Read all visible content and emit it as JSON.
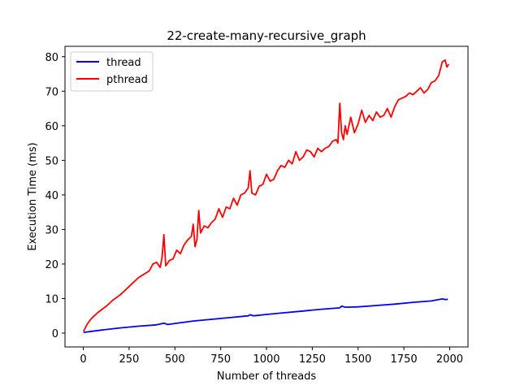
{
  "chart_data": {
    "type": "line",
    "title": "22-create-many-recursive_graph",
    "xlabel": "Number of threads",
    "ylabel": "Execution Time (ms)",
    "xlim": [
      -100,
      2100
    ],
    "ylim": [
      -4,
      83
    ],
    "xticks": [
      0,
      250,
      500,
      750,
      1000,
      1250,
      1500,
      1750,
      2000
    ],
    "yticks": [
      0,
      10,
      20,
      30,
      40,
      50,
      60,
      70,
      80
    ],
    "grid": false,
    "legend_position": "top-left",
    "series": [
      {
        "name": "thread",
        "color": "#0000ff",
        "x": [
          1,
          100,
          200,
          300,
          400,
          440,
          460,
          500,
          600,
          700,
          800,
          900,
          910,
          930,
          1000,
          1100,
          1200,
          1300,
          1400,
          1410,
          1430,
          1500,
          1600,
          1700,
          1800,
          1900,
          1960,
          1980,
          1990
        ],
        "y": [
          0.2,
          0.9,
          1.5,
          2.0,
          2.4,
          2.9,
          2.5,
          2.8,
          3.5,
          4.0,
          4.5,
          5.0,
          5.3,
          5.0,
          5.4,
          5.9,
          6.4,
          6.9,
          7.3,
          7.8,
          7.5,
          7.6,
          8.0,
          8.4,
          8.9,
          9.3,
          9.9,
          9.7,
          9.8
        ]
      },
      {
        "name": "pthread",
        "color": "#ff0000",
        "x": [
          1,
          20,
          40,
          60,
          80,
          100,
          130,
          160,
          200,
          240,
          270,
          300,
          330,
          360,
          380,
          400,
          420,
          430,
          440,
          450,
          470,
          490,
          510,
          530,
          550,
          570,
          590,
          600,
          610,
          620,
          630,
          640,
          660,
          680,
          700,
          720,
          740,
          760,
          780,
          800,
          820,
          840,
          860,
          880,
          900,
          910,
          920,
          940,
          960,
          980,
          1000,
          1020,
          1040,
          1060,
          1080,
          1100,
          1120,
          1140,
          1160,
          1180,
          1200,
          1220,
          1240,
          1260,
          1280,
          1300,
          1320,
          1340,
          1360,
          1380,
          1390,
          1400,
          1410,
          1420,
          1430,
          1440,
          1460,
          1480,
          1500,
          1520,
          1540,
          1560,
          1580,
          1600,
          1620,
          1640,
          1660,
          1680,
          1700,
          1720,
          1740,
          1760,
          1780,
          1800,
          1820,
          1840,
          1860,
          1880,
          1900,
          1920,
          1940,
          1960,
          1975,
          1985,
          1995
        ],
        "y": [
          0.5,
          2.5,
          4.0,
          5.0,
          6.0,
          6.8,
          8.0,
          9.5,
          11.0,
          13.0,
          14.5,
          16.0,
          17.0,
          18.0,
          20.0,
          20.5,
          19.0,
          22.0,
          28.5,
          19.5,
          21.0,
          21.5,
          24.0,
          23.0,
          25.5,
          27.0,
          28.0,
          31.5,
          25.0,
          27.0,
          35.5,
          29.0,
          31.0,
          30.5,
          32.0,
          33.0,
          36.0,
          33.5,
          36.5,
          36.0,
          39.0,
          37.0,
          40.0,
          40.5,
          42.0,
          47.0,
          40.5,
          40.0,
          42.5,
          43.0,
          46.0,
          44.0,
          44.5,
          47.0,
          48.5,
          48.0,
          50.0,
          49.0,
          52.5,
          50.0,
          51.0,
          53.0,
          52.5,
          51.0,
          53.5,
          52.5,
          53.5,
          54.0,
          55.5,
          56.0,
          55.0,
          66.5,
          58.0,
          56.0,
          60.0,
          57.5,
          62.5,
          58.0,
          60.5,
          64.5,
          61.0,
          63.0,
          61.5,
          64.0,
          62.5,
          63.0,
          65.0,
          62.5,
          65.5,
          67.5,
          68.0,
          68.5,
          69.5,
          69.0,
          70.0,
          71.0,
          69.5,
          70.5,
          72.5,
          73.0,
          74.5,
          78.5,
          79.0,
          77.0,
          77.8
        ]
      }
    ]
  }
}
